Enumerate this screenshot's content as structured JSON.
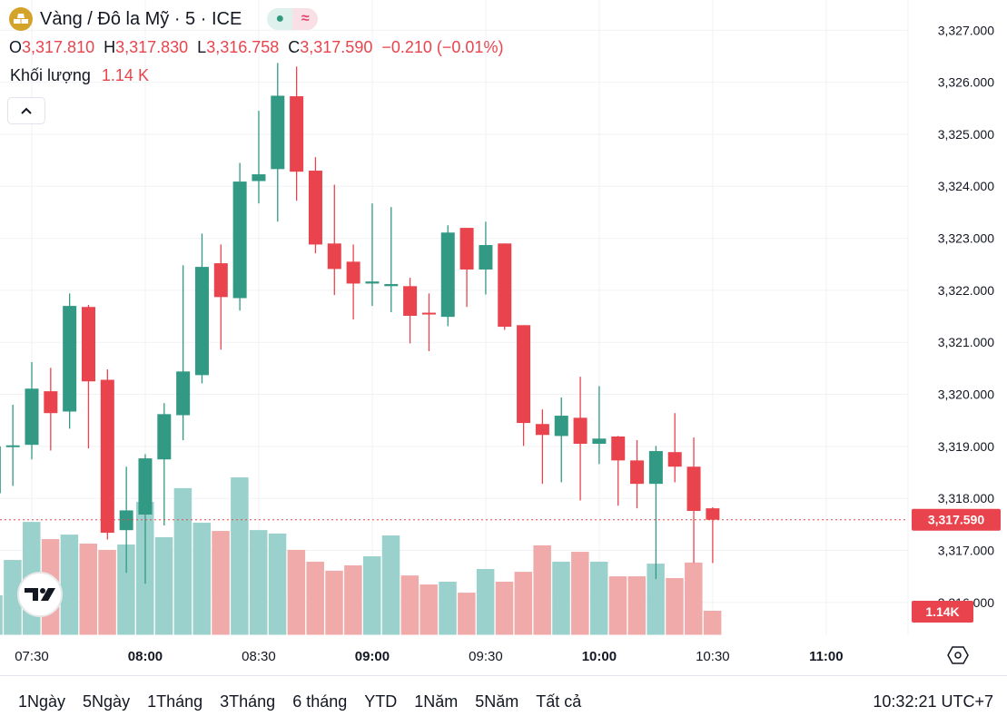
{
  "header": {
    "title": "Vàng / Đô la Mỹ · 5 · ICE",
    "status_dot": "●",
    "approx_symbol": "≈",
    "ohlc": {
      "o_label": "O",
      "o_value": "3,317.810",
      "h_label": "H",
      "h_value": "3,317.830",
      "l_label": "L",
      "l_value": "3,316.758",
      "c_label": "C",
      "c_value": "3,317.590",
      "change": "−0.210 (−0.01%)"
    },
    "volume_label": "Khối lượng",
    "volume_value": "1.14 K"
  },
  "bottom_bar": {
    "ranges": [
      "1Ngày",
      "5Ngày",
      "1Tháng",
      "3Tháng",
      "6 tháng",
      "YTD",
      "1Năm",
      "5Năm",
      "Tất cả"
    ],
    "clock": "10:32:21 UTC+7"
  },
  "colors": {
    "up": "#329a84",
    "down": "#e9444d",
    "vol_up": "#9ad1cd",
    "vol_down": "#f0aaaa"
  },
  "chart_data": {
    "type": "candlestick",
    "title": "Vàng / Đô la Mỹ · 5 · ICE",
    "ylim": [
      3315.37,
      3327.58
    ],
    "y_ticks": [
      "3,327.000",
      "3,326.000",
      "3,325.000",
      "3,324.000",
      "3,323.000",
      "3,322.000",
      "3,321.000",
      "3,320.000",
      "3,319.000",
      "3,318.000",
      "3,317.000",
      "3,316.000"
    ],
    "y_tick_values": [
      3327,
      3326,
      3325,
      3324,
      3323,
      3322,
      3321,
      3320,
      3319,
      3318,
      3317,
      3316
    ],
    "x_ticks": [
      "07:30",
      "08:00",
      "08:30",
      "09:00",
      "09:30",
      "10:00",
      "10:30",
      "11:00"
    ],
    "last_price": 3317.59,
    "last_price_label": "3,317.590",
    "last_volume_label": "1.14K",
    "volume_unit": "K",
    "candles": [
      {
        "t": "07:20",
        "o": 3318.1,
        "h": 3319.2,
        "l": 3317.6,
        "c": 3319.0,
        "v": 1.86
      },
      {
        "t": "07:25",
        "o": 3319.0,
        "h": 3319.8,
        "l": 3318.24,
        "c": 3319.02,
        "v": 3.5
      },
      {
        "t": "07:30",
        "o": 3319.03,
        "h": 3320.62,
        "l": 3318.75,
        "c": 3320.11,
        "v": 5.27
      },
      {
        "t": "07:35",
        "o": 3320.06,
        "h": 3320.51,
        "l": 3318.92,
        "c": 3319.64,
        "v": 4.47
      },
      {
        "t": "07:40",
        "o": 3319.67,
        "h": 3321.94,
        "l": 3319.34,
        "c": 3321.7,
        "v": 4.68
      },
      {
        "t": "07:45",
        "o": 3321.68,
        "h": 3321.72,
        "l": 3318.96,
        "c": 3320.25,
        "v": 4.26
      },
      {
        "t": "07:50",
        "o": 3320.28,
        "h": 3320.48,
        "l": 3317.21,
        "c": 3317.34,
        "v": 3.97
      },
      {
        "t": "07:55",
        "o": 3317.39,
        "h": 3318.61,
        "l": 3316.57,
        "c": 3317.77,
        "v": 4.22
      },
      {
        "t": "08:00",
        "o": 3317.69,
        "h": 3318.85,
        "l": 3316.36,
        "c": 3318.77,
        "v": 6.2
      },
      {
        "t": "08:05",
        "o": 3318.75,
        "h": 3319.83,
        "l": 3317.48,
        "c": 3319.62,
        "v": 4.56
      },
      {
        "t": "08:10",
        "o": 3319.6,
        "h": 3322.48,
        "l": 3319.12,
        "c": 3320.44,
        "v": 6.84
      },
      {
        "t": "08:15",
        "o": 3320.37,
        "h": 3323.09,
        "l": 3320.21,
        "c": 3322.45,
        "v": 5.23
      },
      {
        "t": "08:20",
        "o": 3322.52,
        "h": 3322.88,
        "l": 3320.86,
        "c": 3321.87,
        "v": 4.85
      },
      {
        "t": "08:25",
        "o": 3321.85,
        "h": 3324.45,
        "l": 3321.61,
        "c": 3324.09,
        "v": 7.34
      },
      {
        "t": "08:30",
        "o": 3324.1,
        "h": 3325.45,
        "l": 3323.67,
        "c": 3324.23,
        "v": 4.89
      },
      {
        "t": "08:35",
        "o": 3324.33,
        "h": 3326.37,
        "l": 3323.32,
        "c": 3325.74,
        "v": 4.73
      },
      {
        "t": "08:40",
        "o": 3325.73,
        "h": 3326.3,
        "l": 3323.72,
        "c": 3324.28,
        "v": 3.97
      },
      {
        "t": "08:45",
        "o": 3324.3,
        "h": 3324.56,
        "l": 3322.71,
        "c": 3322.88,
        "v": 3.42
      },
      {
        "t": "08:50",
        "o": 3322.9,
        "h": 3324.03,
        "l": 3321.91,
        "c": 3322.41,
        "v": 3.0
      },
      {
        "t": "08:55",
        "o": 3322.55,
        "h": 3322.88,
        "l": 3321.44,
        "c": 3322.13,
        "v": 3.25
      },
      {
        "t": "09:00",
        "o": 3322.13,
        "h": 3323.67,
        "l": 3321.7,
        "c": 3322.17,
        "v": 3.67
      },
      {
        "t": "09:05",
        "o": 3322.08,
        "h": 3323.6,
        "l": 3321.58,
        "c": 3322.12,
        "v": 4.64
      },
      {
        "t": "09:10",
        "o": 3322.08,
        "h": 3322.24,
        "l": 3320.98,
        "c": 3321.51,
        "v": 2.78
      },
      {
        "t": "09:15",
        "o": 3321.57,
        "h": 3321.94,
        "l": 3320.83,
        "c": 3321.56,
        "v": 2.36
      },
      {
        "t": "09:20",
        "o": 3321.49,
        "h": 3323.25,
        "l": 3321.31,
        "c": 3323.11,
        "v": 2.49
      },
      {
        "t": "09:25",
        "o": 3323.2,
        "h": 3323.2,
        "l": 3321.68,
        "c": 3322.4,
        "v": 1.98
      },
      {
        "t": "09:30",
        "o": 3322.4,
        "h": 3323.32,
        "l": 3321.92,
        "c": 3322.87,
        "v": 3.08
      },
      {
        "t": "09:35",
        "o": 3322.9,
        "h": 3322.9,
        "l": 3321.24,
        "c": 3321.3,
        "v": 2.49
      },
      {
        "t": "09:40",
        "o": 3321.33,
        "h": 3321.33,
        "l": 3319.01,
        "c": 3319.45,
        "v": 2.95
      },
      {
        "t": "09:45",
        "o": 3319.43,
        "h": 3319.71,
        "l": 3318.28,
        "c": 3319.22,
        "v": 4.18
      },
      {
        "t": "09:50",
        "o": 3319.2,
        "h": 3319.94,
        "l": 3318.31,
        "c": 3319.59,
        "v": 3.42
      },
      {
        "t": "09:55",
        "o": 3319.55,
        "h": 3320.34,
        "l": 3317.96,
        "c": 3319.05,
        "v": 3.88
      },
      {
        "t": "10:00",
        "o": 3319.05,
        "h": 3320.16,
        "l": 3318.66,
        "c": 3319.15,
        "v": 3.42
      },
      {
        "t": "10:05",
        "o": 3319.19,
        "h": 3319.2,
        "l": 3317.86,
        "c": 3318.73,
        "v": 2.74
      },
      {
        "t": "10:10",
        "o": 3318.73,
        "h": 3319.12,
        "l": 3317.81,
        "c": 3318.28,
        "v": 2.74
      },
      {
        "t": "10:15",
        "o": 3318.28,
        "h": 3319.01,
        "l": 3316.45,
        "c": 3318.91,
        "v": 3.33
      },
      {
        "t": "10:20",
        "o": 3318.89,
        "h": 3319.64,
        "l": 3318.31,
        "c": 3318.61,
        "v": 2.66
      },
      {
        "t": "10:25",
        "o": 3318.61,
        "h": 3319.17,
        "l": 3316.76,
        "c": 3317.76,
        "v": 3.38
      },
      {
        "t": "10:30",
        "o": 3317.81,
        "h": 3317.83,
        "l": 3316.758,
        "c": 3317.59,
        "v": 1.14
      }
    ]
  }
}
